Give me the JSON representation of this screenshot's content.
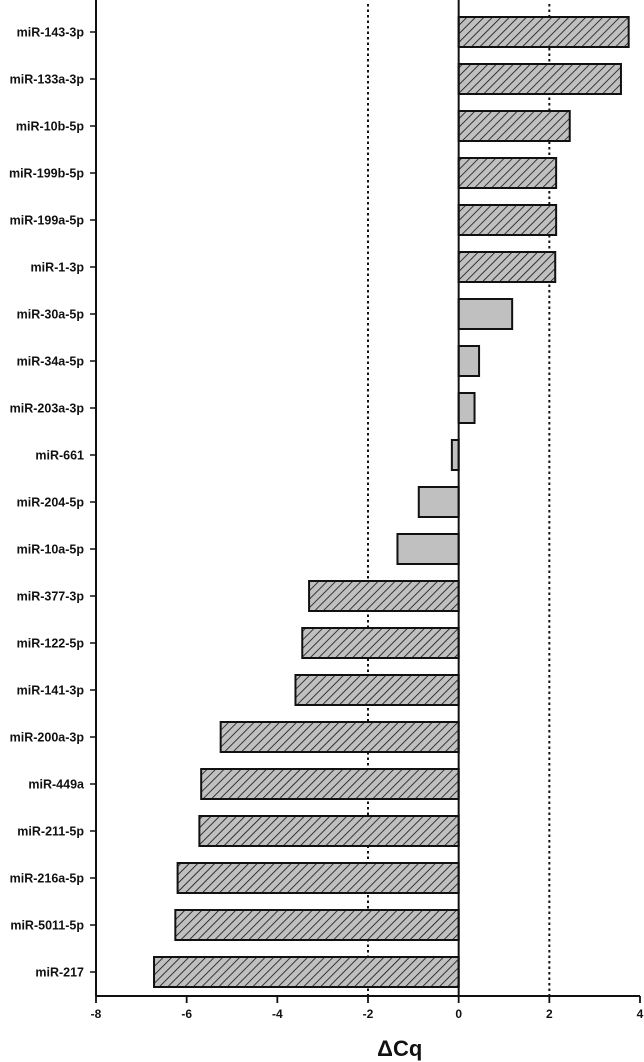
{
  "chart_data": {
    "type": "bar",
    "orientation": "horizontal",
    "xlabel": "ΔCq",
    "xlim": [
      -8,
      4
    ],
    "xticks": [
      -8,
      -6,
      -4,
      -2,
      0,
      2,
      4
    ],
    "reference_lines": [
      -2,
      2
    ],
    "grid": false,
    "bar_fill": "#c0c0c0",
    "bar_edge": "#111111",
    "categories": [
      "miR-143-3p",
      "miR-133a-3p",
      "miR-10b-5p",
      "miR-199b-5p",
      "miR-199a-5p",
      "miR-1-3p",
      "miR-30a-5p",
      "miR-34a-5p",
      "miR-203a-3p",
      "miR-661",
      "miR-204-5p",
      "miR-10a-5p",
      "miR-377-3p",
      "miR-122-5p",
      "miR-141-3p",
      "miR-200a-3p",
      "miR-449a",
      "miR-211-5p",
      "miR-216a-5p",
      "miR-5011-5p",
      "miR-217"
    ],
    "values": [
      3.75,
      3.58,
      2.45,
      2.15,
      2.15,
      2.13,
      1.18,
      0.45,
      0.35,
      -0.15,
      -0.88,
      -1.35,
      -3.3,
      -3.45,
      -3.6,
      -5.25,
      -5.68,
      -5.72,
      -6.2,
      -6.25,
      -6.72
    ],
    "hatched": [
      true,
      true,
      true,
      true,
      true,
      true,
      false,
      false,
      false,
      false,
      false,
      false,
      true,
      true,
      true,
      true,
      true,
      true,
      true,
      true,
      true
    ]
  }
}
